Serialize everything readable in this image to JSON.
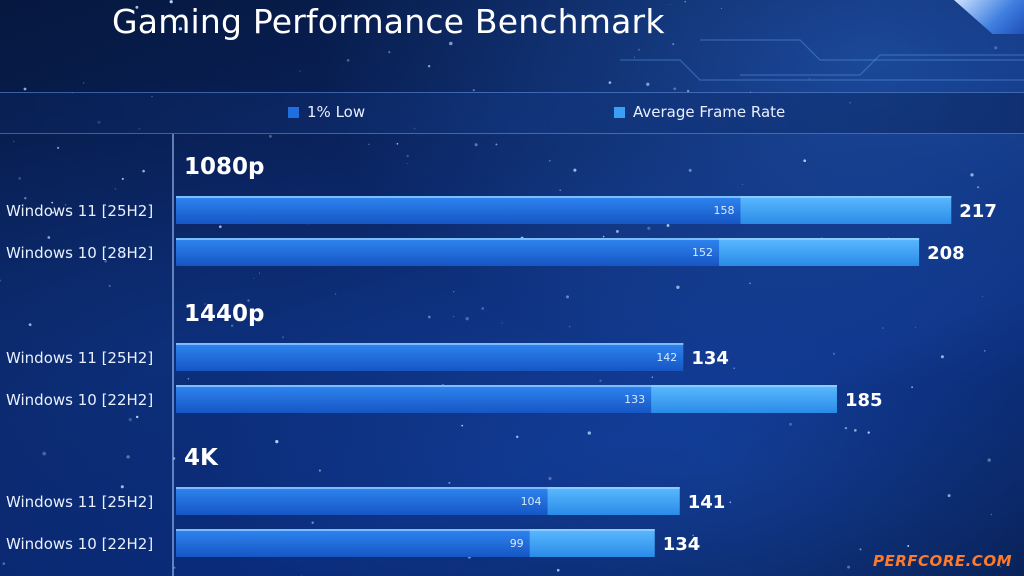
{
  "page": {
    "title": "Gaming Performance Benchmark",
    "watermark": "PERFCORE.COM"
  },
  "legend": [
    {
      "label": "1% Low",
      "color": "#1f6fe0"
    },
    {
      "label": "Average Frame Rate",
      "color": "#3aa0f5"
    }
  ],
  "chart_data": {
    "type": "bar",
    "orientation": "horizontal",
    "stacked_overlay": true,
    "title": "Gaming Performance Benchmark",
    "xlim": [
      0,
      220
    ],
    "grid": false,
    "legend_position": "top",
    "series_names": [
      "1% Low",
      "Average Frame Rate"
    ],
    "groups": [
      {
        "label": "1080p",
        "rows": [
          {
            "label": "Windows 11 [25H2]",
            "low": 158,
            "avg": 217
          },
          {
            "label": "Windows 10 [28H2]",
            "low": 152,
            "avg": 208
          }
        ]
      },
      {
        "label": "1440p",
        "rows": [
          {
            "label": "Windows 11 [25H2]",
            "low": 142,
            "avg": 134
          },
          {
            "label": "Windows 10 [22H2]",
            "low": 133,
            "avg": 185
          }
        ]
      },
      {
        "label": "4K",
        "rows": [
          {
            "label": "Windows 11 [25H2]",
            "low": 104,
            "avg": 141
          },
          {
            "label": "Windows 10 [22H2]",
            "low": 99,
            "avg": 134
          }
        ]
      }
    ],
    "colors": {
      "low": "#1f6fe0",
      "avg": "#3aa0f5"
    }
  }
}
